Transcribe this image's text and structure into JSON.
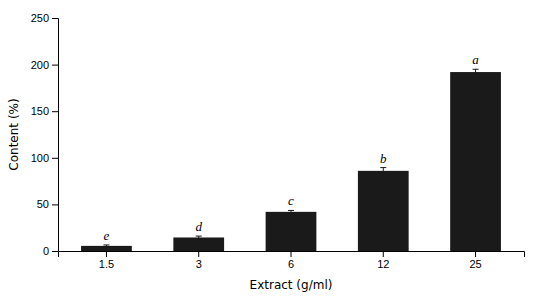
{
  "chart_data": {
    "type": "bar",
    "categories": [
      "1.5",
      "3",
      "6",
      "12",
      "25"
    ],
    "values": [
      5.5,
      14.5,
      42.0,
      86.0,
      192.0
    ],
    "errors": [
      1.0,
      1.5,
      1.5,
      3.5,
      3.0
    ],
    "annotations": [
      "e",
      "d",
      "c",
      "b",
      "a"
    ],
    "color": "#1a1a1a",
    "xlabel": "Extract (g/ml)",
    "ylabel": "Content (%)",
    "ylim": [
      0,
      250
    ],
    "yticks": [
      0,
      50,
      100,
      150,
      200,
      250
    ],
    "grid": false
  }
}
